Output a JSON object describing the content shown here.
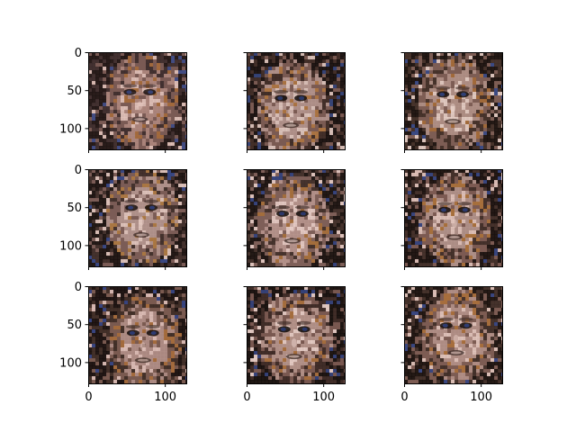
{
  "figure": {
    "background": "#ffffff",
    "grid_rows": 3,
    "grid_cols": 3,
    "sharex": true,
    "sharey": true
  },
  "axes_defaults": {
    "x_ticks": [
      0,
      100
    ],
    "y_ticks": [
      0,
      50,
      100
    ],
    "x_range": [
      0,
      128
    ],
    "y_range": [
      0,
      128
    ],
    "y_inverted": true
  },
  "panels": [
    {
      "row": 0,
      "col": 0,
      "show_y_ticklabels": true,
      "show_x_ticklabels": false,
      "image": "generated-face-sample",
      "palette": [
        "#1b1210",
        "#3a2a2a",
        "#7a5a55",
        "#b08a80",
        "#e6c8c0",
        "#a86c3a",
        "#3a4a8a"
      ]
    },
    {
      "row": 0,
      "col": 1,
      "show_y_ticklabels": false,
      "show_x_ticklabels": false,
      "image": "generated-face-sample",
      "palette": [
        "#120c0a",
        "#3a2822",
        "#7a5a52",
        "#b5978f",
        "#e3cbc3",
        "#b0773f",
        "#2b3f7a"
      ]
    },
    {
      "row": 0,
      "col": 2,
      "show_y_ticklabels": false,
      "show_x_ticklabels": false,
      "image": "generated-face-sample",
      "palette": [
        "#140d0b",
        "#3d2b25",
        "#7d5d55",
        "#b39389",
        "#ead3cb",
        "#a66b36",
        "#30468a"
      ]
    },
    {
      "row": 1,
      "col": 0,
      "show_y_ticklabels": true,
      "show_x_ticklabels": false,
      "image": "generated-face-sample",
      "palette": [
        "#150e0c",
        "#3b2a26",
        "#7b5c56",
        "#b69891",
        "#e8ccc4",
        "#b07a3f",
        "#2f4488"
      ]
    },
    {
      "row": 1,
      "col": 1,
      "show_y_ticklabels": false,
      "show_x_ticklabels": false,
      "image": "generated-face-sample",
      "palette": [
        "#130d0b",
        "#3c2b26",
        "#7e5f58",
        "#b8968f",
        "#ecd2cb",
        "#a87038",
        "#2c3f80"
      ]
    },
    {
      "row": 1,
      "col": 2,
      "show_y_ticklabels": false,
      "show_x_ticklabels": false,
      "image": "generated-face-sample",
      "palette": [
        "#140d0b",
        "#3c2a24",
        "#7c5b52",
        "#b4958d",
        "#e6c9c1",
        "#ad7238",
        "#2e4284"
      ]
    },
    {
      "row": 2,
      "col": 0,
      "show_y_ticklabels": true,
      "show_x_ticklabels": true,
      "image": "generated-face-sample",
      "palette": [
        "#130c0a",
        "#3a2922",
        "#7a5a50",
        "#b3918a",
        "#e4c6be",
        "#a96d3a",
        "#2d4186"
      ]
    },
    {
      "row": 2,
      "col": 1,
      "show_y_ticklabels": false,
      "show_x_ticklabels": true,
      "image": "generated-face-sample",
      "palette": [
        "#0f0a08",
        "#372621",
        "#795850",
        "#b7968d",
        "#eed6cf",
        "#aa7039",
        "#2a3d7c"
      ]
    },
    {
      "row": 2,
      "col": 2,
      "show_y_ticklabels": false,
      "show_x_ticklabels": true,
      "image": "generated-face-sample",
      "palette": [
        "#140d0b",
        "#3b2a25",
        "#7d5c54",
        "#b5938b",
        "#e7cbc3",
        "#ab7039",
        "#2f4387"
      ]
    }
  ]
}
